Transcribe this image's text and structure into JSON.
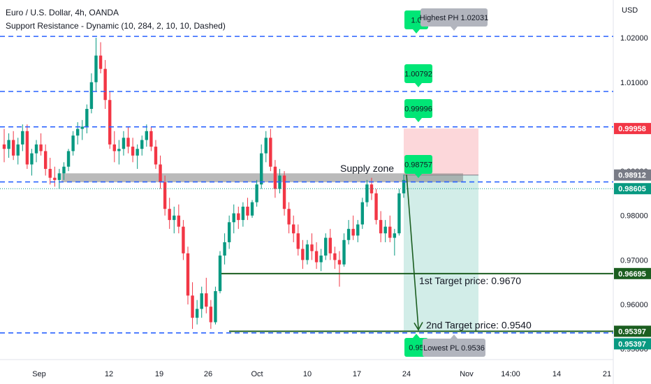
{
  "header": {
    "symbol_line": "Euro / U.S. Dollar, 4h, OANDA",
    "indicator_line": "Support Resistance - Dynamic (10, 284, 2, 10, 10, Dashed)"
  },
  "axis": {
    "currency": "USD",
    "y_ticks": [
      "1.02000",
      "1.01000",
      "1.00000",
      "0.99000",
      "0.98000",
      "0.97000",
      "0.96000",
      "0.95000"
    ],
    "x_ticks": [
      "Sep",
      "12",
      "19",
      "26",
      "Oct",
      "10",
      "17",
      "24",
      "Nov",
      "14:00",
      "14",
      "21"
    ]
  },
  "chart_data": {
    "type": "candlestick",
    "ylim": [
      0.9476,
      1.0285
    ],
    "x_ticks": [
      "Sep",
      "12",
      "19",
      "26",
      "Oct",
      "10",
      "17",
      "24",
      "Nov",
      "14:00",
      "14",
      "21"
    ],
    "candles_ohlc": [
      [
        0.996,
        0.9995,
        0.992,
        0.995
      ],
      [
        0.995,
        0.9985,
        0.993,
        0.997
      ],
      [
        0.997,
        0.999,
        0.9925,
        0.9935
      ],
      [
        0.9935,
        0.9975,
        0.9915,
        0.996
      ],
      [
        0.996,
        1.0005,
        0.9945,
        0.999
      ],
      [
        0.999,
        1.0005,
        0.9905,
        0.9915
      ],
      [
        0.9915,
        0.995,
        0.989,
        0.994
      ],
      [
        0.994,
        0.997,
        0.992,
        0.996
      ],
      [
        0.996,
        0.9985,
        0.9935,
        0.9945
      ],
      [
        0.9945,
        0.996,
        0.989,
        0.9905
      ],
      [
        0.9905,
        0.993,
        0.987,
        0.9885
      ],
      [
        0.9885,
        0.991,
        0.9865,
        0.988
      ],
      [
        0.988,
        0.9905,
        0.986,
        0.9895
      ],
      [
        0.9895,
        0.992,
        0.988,
        0.991
      ],
      [
        0.991,
        0.995,
        0.99,
        0.9945
      ],
      [
        0.9945,
        0.999,
        0.9935,
        0.998
      ],
      [
        0.998,
        1.001,
        0.996,
        0.9995
      ],
      [
        0.9995,
        1.0015,
        0.997,
        1.0
      ],
      [
        1.0,
        1.005,
        0.9985,
        1.004
      ],
      [
        1.004,
        1.012,
        1.003,
        1.01
      ],
      [
        1.01,
        1.02,
        1.008,
        1.016
      ],
      [
        1.016,
        1.019,
        1.012,
        1.013
      ],
      [
        1.013,
        1.015,
        1.004,
        1.006
      ],
      [
        1.006,
        1.008,
        0.995,
        0.996
      ],
      [
        0.996,
        0.999,
        0.992,
        0.9945
      ],
      [
        0.9945,
        0.997,
        0.9915,
        0.995
      ],
      [
        0.995,
        0.999,
        0.9935,
        0.9975
      ],
      [
        0.9975,
        1.0,
        0.994,
        0.9955
      ],
      [
        0.9955,
        0.9975,
        0.992,
        0.9935
      ],
      [
        0.9935,
        0.996,
        0.9905,
        0.995
      ],
      [
        0.995,
        0.998,
        0.9935,
        0.997
      ],
      [
        0.997,
        1.0005,
        0.9955,
        0.999
      ],
      [
        0.999,
        1.0,
        0.9945,
        0.9955
      ],
      [
        0.9955,
        0.997,
        0.9905,
        0.9915
      ],
      [
        0.9915,
        0.9935,
        0.986,
        0.9875
      ],
      [
        0.9875,
        0.989,
        0.98,
        0.9815
      ],
      [
        0.9815,
        0.984,
        0.977,
        0.979
      ],
      [
        0.979,
        0.982,
        0.976,
        0.98
      ],
      [
        0.98,
        0.9825,
        0.976,
        0.9775
      ],
      [
        0.9775,
        0.979,
        0.97,
        0.9715
      ],
      [
        0.9715,
        0.973,
        0.96,
        0.962
      ],
      [
        0.962,
        0.965,
        0.9545,
        0.957
      ],
      [
        0.957,
        0.961,
        0.9555,
        0.959
      ],
      [
        0.959,
        0.964,
        0.957,
        0.9625
      ],
      [
        0.9625,
        0.966,
        0.958,
        0.9595
      ],
      [
        0.9595,
        0.961,
        0.9545,
        0.956
      ],
      [
        0.956,
        0.964,
        0.9555,
        0.963
      ],
      [
        0.963,
        0.972,
        0.9625,
        0.971
      ],
      [
        0.971,
        0.976,
        0.969,
        0.974
      ],
      [
        0.974,
        0.98,
        0.9725,
        0.9785
      ],
      [
        0.9785,
        0.9825,
        0.976,
        0.9805
      ],
      [
        0.9805,
        0.982,
        0.977,
        0.979
      ],
      [
        0.979,
        0.983,
        0.9775,
        0.982
      ],
      [
        0.982,
        0.984,
        0.979,
        0.98
      ],
      [
        0.98,
        0.9835,
        0.9795,
        0.983
      ],
      [
        0.983,
        0.988,
        0.982,
        0.987
      ],
      [
        0.987,
        0.996,
        0.986,
        0.994
      ],
      [
        0.994,
        0.999,
        0.992,
        0.9975
      ],
      [
        0.9975,
        0.9995,
        0.99,
        0.991
      ],
      [
        0.991,
        0.9925,
        0.984,
        0.986
      ],
      [
        0.986,
        0.9905,
        0.985,
        0.989
      ],
      [
        0.989,
        0.99,
        0.98,
        0.9815
      ],
      [
        0.9815,
        0.983,
        0.976,
        0.978
      ],
      [
        0.978,
        0.98,
        0.974,
        0.976
      ],
      [
        0.976,
        0.978,
        0.971,
        0.9725
      ],
      [
        0.9725,
        0.9745,
        0.968,
        0.97
      ],
      [
        0.97,
        0.9745,
        0.969,
        0.9735
      ],
      [
        0.9735,
        0.976,
        0.97,
        0.972
      ],
      [
        0.972,
        0.974,
        0.968,
        0.9695
      ],
      [
        0.9695,
        0.9725,
        0.9675,
        0.971
      ],
      [
        0.971,
        0.976,
        0.97,
        0.975
      ],
      [
        0.975,
        0.977,
        0.97,
        0.9715
      ],
      [
        0.9715,
        0.973,
        0.968,
        0.97
      ],
      [
        0.97,
        0.972,
        0.964,
        0.969
      ],
      [
        0.969,
        0.976,
        0.9685,
        0.9745
      ],
      [
        0.9745,
        0.979,
        0.9735,
        0.977
      ],
      [
        0.977,
        0.98,
        0.9745,
        0.9755
      ],
      [
        0.9755,
        0.979,
        0.974,
        0.978
      ],
      [
        0.978,
        0.984,
        0.977,
        0.983
      ],
      [
        0.983,
        0.988,
        0.982,
        0.987
      ],
      [
        0.987,
        0.9885,
        0.9835,
        0.985
      ],
      [
        0.985,
        0.986,
        0.978,
        0.979
      ],
      [
        0.979,
        0.981,
        0.974,
        0.976
      ],
      [
        0.976,
        0.979,
        0.974,
        0.9775
      ],
      [
        0.9775,
        0.98,
        0.974,
        0.975
      ],
      [
        0.975,
        0.977,
        0.971,
        0.976
      ],
      [
        0.976,
        0.986,
        0.9755,
        0.985
      ],
      [
        0.985,
        0.9892,
        0.984,
        0.988
      ]
    ],
    "levels": [
      {
        "price": 1.02031,
        "label": "Highest PH 1.02031"
      },
      {
        "price": 1.00792,
        "label": "1.00792"
      },
      {
        "price": 0.99996,
        "label": "0.99996"
      },
      {
        "price": 0.98757,
        "label": "0.98757"
      },
      {
        "price": 0.9536,
        "label": "Lowest PL 0.9536"
      }
    ],
    "price_tags": [
      {
        "price": 0.99958,
        "text": "0.99958",
        "color": "#f23645"
      },
      {
        "price": 0.98912,
        "text": "0.98912",
        "color": "#787b86"
      },
      {
        "price": 0.98605,
        "text": "0.98605",
        "color": "#089981"
      },
      {
        "price": 0.96695,
        "text": "0.96695",
        "color": "#1b5e20"
      },
      {
        "price": 0.95397,
        "text": "0.95397",
        "color": "#1b5e20"
      },
      {
        "price": 0.95397,
        "text": "0.95397",
        "color": "#089981"
      }
    ],
    "supply_zone": {
      "label": "Supply zone",
      "top": 0.9895,
      "bottom": 0.9875
    },
    "position": {
      "entry": 0.98912,
      "stop": 0.99958,
      "target": 0.95397
    },
    "targets": [
      {
        "price": 0.96695,
        "label": "1st Target price: 0.9670"
      },
      {
        "price": 0.95397,
        "label": "2nd Target price: 0.9540"
      }
    ],
    "marker_labels": [
      "1.0",
      "0.95"
    ]
  },
  "colors": {
    "up": "#089981",
    "down": "#f23645",
    "dash_line": "#2962ff",
    "target_line": "#1b5e20",
    "marker_green": "#00e676",
    "zone_gray": "#9e9e9e",
    "tooltip_gray": "#b2b5be"
  }
}
